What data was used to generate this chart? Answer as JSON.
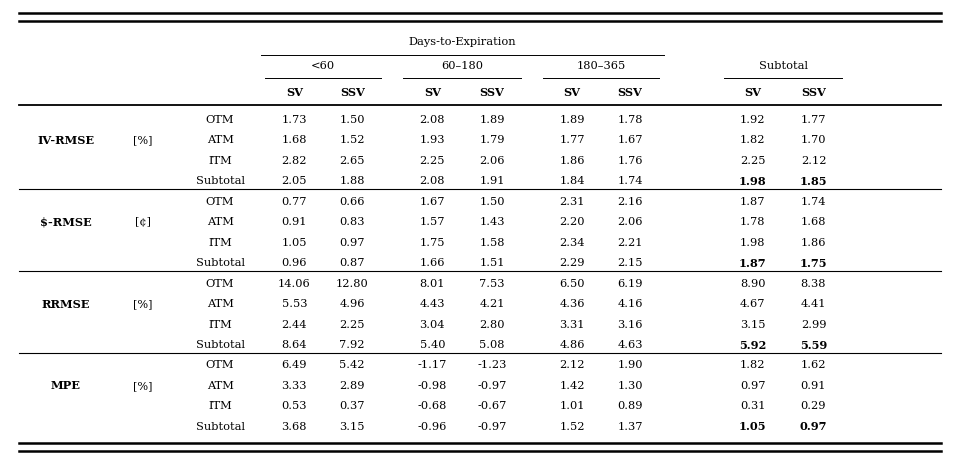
{
  "header_days": "Days-to-Expiration",
  "col_groups": [
    "<60",
    "60–180",
    "180–365",
    "Subtotal"
  ],
  "row_groups": [
    {
      "name": "IV-RMSE",
      "unit": "[%]"
    },
    {
      "name": "$-RMSE",
      "unit": "[¢]"
    },
    {
      "name": "RRMSE",
      "unit": "[%]"
    },
    {
      "name": "MPE",
      "unit": "[%]"
    }
  ],
  "moneyness": [
    "OTM",
    "ATM",
    "ITM"
  ],
  "subtotal_label": "Subtotal",
  "data": {
    "IV-RMSE": {
      "OTM": [
        1.73,
        1.5,
        2.08,
        1.89,
        1.89,
        1.78,
        1.92,
        1.77
      ],
      "ATM": [
        1.68,
        1.52,
        1.93,
        1.79,
        1.77,
        1.67,
        1.82,
        1.7
      ],
      "ITM": [
        2.82,
        2.65,
        2.25,
        2.06,
        1.86,
        1.76,
        2.25,
        2.12
      ],
      "Subtotal": [
        2.05,
        1.88,
        2.08,
        1.91,
        1.84,
        1.74,
        1.98,
        1.85
      ]
    },
    "$-RMSE": {
      "OTM": [
        0.77,
        0.66,
        1.67,
        1.5,
        2.31,
        2.16,
        1.87,
        1.74
      ],
      "ATM": [
        0.91,
        0.83,
        1.57,
        1.43,
        2.2,
        2.06,
        1.78,
        1.68
      ],
      "ITM": [
        1.05,
        0.97,
        1.75,
        1.58,
        2.34,
        2.21,
        1.98,
        1.86
      ],
      "Subtotal": [
        0.96,
        0.87,
        1.66,
        1.51,
        2.29,
        2.15,
        1.87,
        1.75
      ]
    },
    "RRMSE": {
      "OTM": [
        14.06,
        12.8,
        8.01,
        7.53,
        6.5,
        6.19,
        8.9,
        8.38
      ],
      "ATM": [
        5.53,
        4.96,
        4.43,
        4.21,
        4.36,
        4.16,
        4.67,
        4.41
      ],
      "ITM": [
        2.44,
        2.25,
        3.04,
        2.8,
        3.31,
        3.16,
        3.15,
        2.99
      ],
      "Subtotal": [
        8.64,
        7.92,
        5.4,
        5.08,
        4.86,
        4.63,
        5.92,
        5.59
      ]
    },
    "MPE": {
      "OTM": [
        6.49,
        5.42,
        -1.17,
        -1.23,
        2.12,
        1.9,
        1.82,
        1.62
      ],
      "ATM": [
        3.33,
        2.89,
        -0.98,
        -0.97,
        1.42,
        1.3,
        0.97,
        0.91
      ],
      "ITM": [
        0.53,
        0.37,
        -0.68,
        -0.67,
        1.01,
        0.89,
        0.31,
        0.29
      ],
      "Subtotal": [
        3.68,
        3.15,
        -0.96,
        -0.97,
        1.52,
        1.37,
        1.05,
        0.97
      ]
    }
  },
  "bg_color": "white",
  "text_color": "black",
  "line_color": "black",
  "font_size": 8.2,
  "col_x": {
    "metric": 0.068,
    "unit": 0.148,
    "money": 0.228,
    "lt60_SV": 0.305,
    "lt60_SSV": 0.365,
    "m60_180_SV": 0.448,
    "m60_180_SSV": 0.51,
    "m180_365_SV": 0.593,
    "m180_365_SSV": 0.653,
    "sub_SV": 0.78,
    "sub_SSV": 0.843
  }
}
